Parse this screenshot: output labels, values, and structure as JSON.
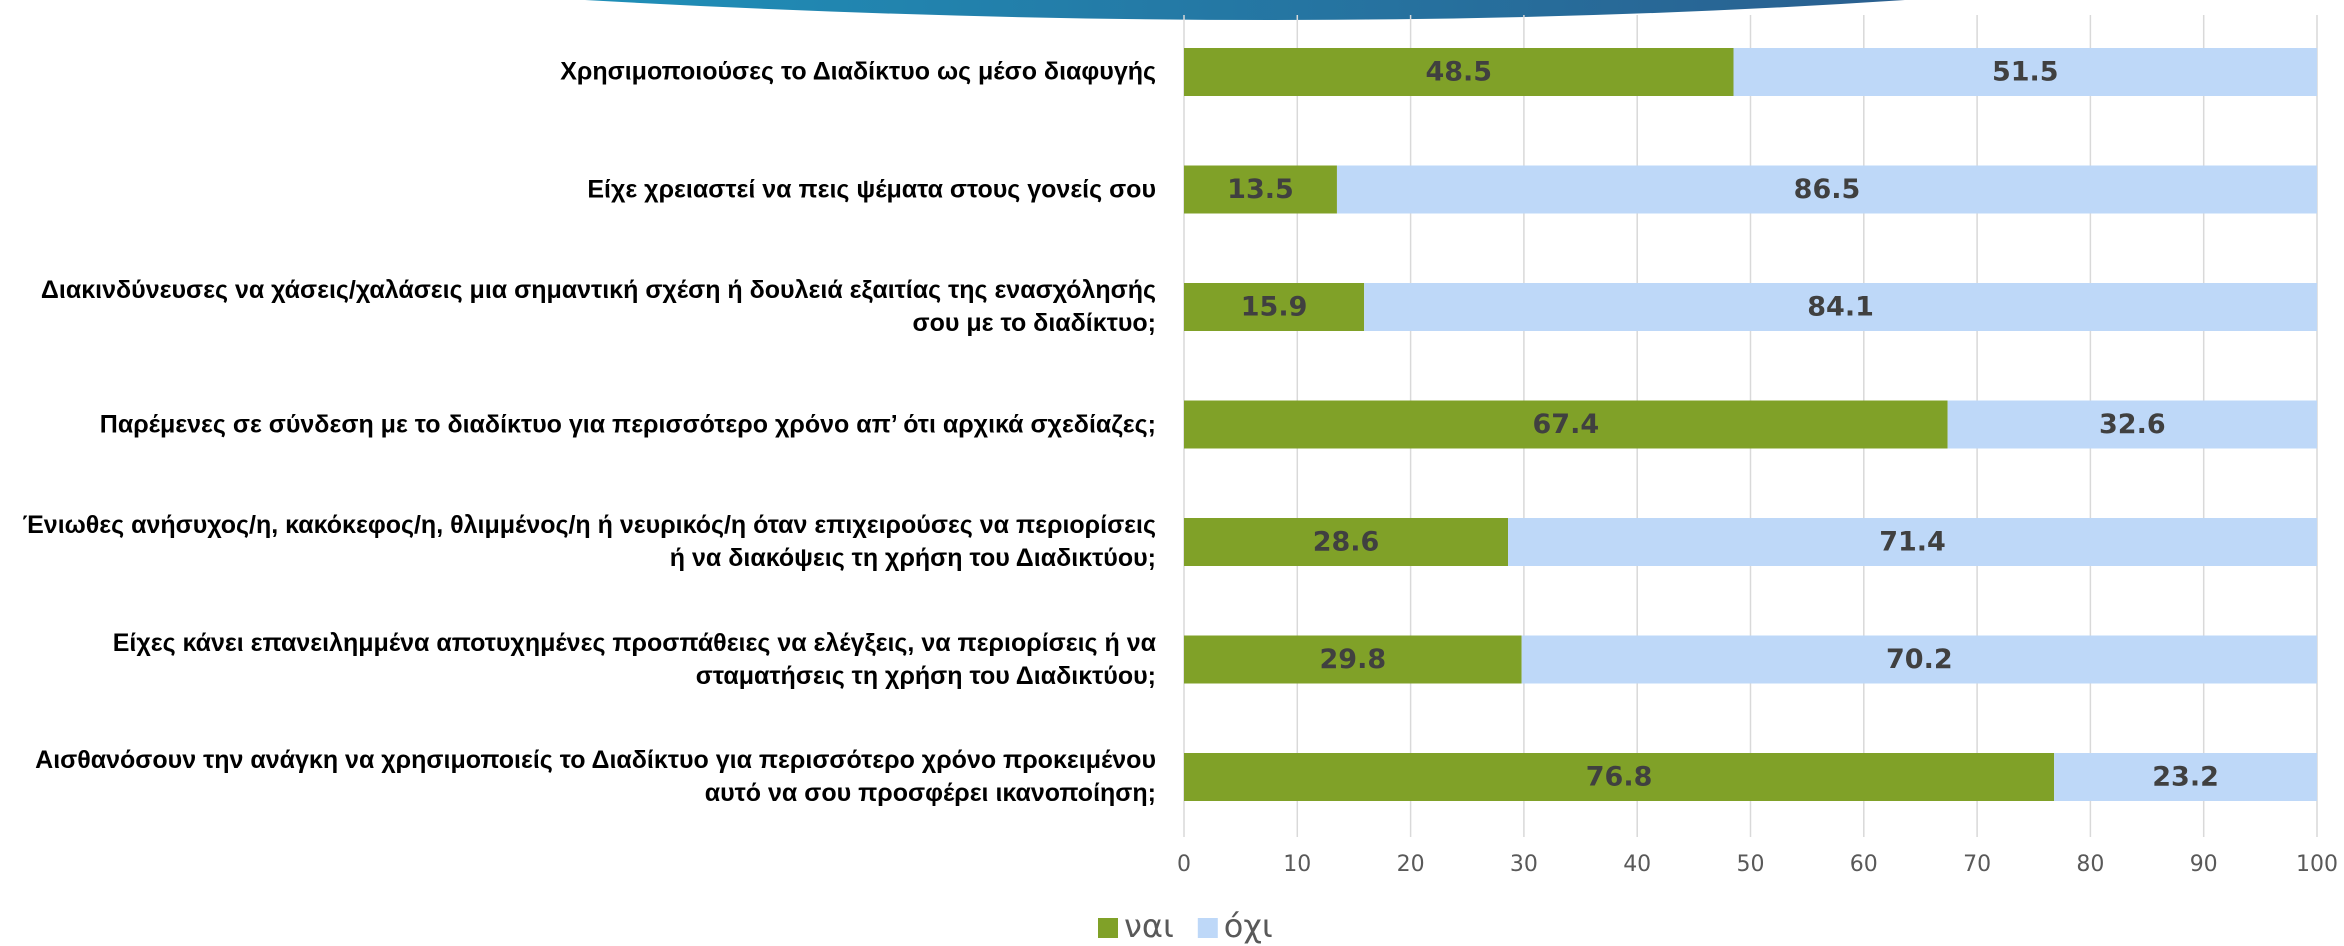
{
  "chart_data": {
    "type": "stacked-barh",
    "categories": [
      "Χρησιμοποιούσες το Διαδίκτυο ως μέσο διαφυγής",
      "Είχε χρειαστεί να πεις ψέματα στους γονείς σου",
      "Διακινδύνευσες να χάσεις/χαλάσεις μια σημαντική σχέση ή δουλειά εξαιτίας της ενασχόλησής σου με το διαδίκτυο;",
      "Παρέμενες σε σύνδεση με το διαδίκτυο για περισσότερο χρόνο απ’ ότι αρχικά σχεδίαζες;",
      "Ένιωθες ανήσυχος/η, κακόκεφος/η, θλιμμένος/η ή νευρικός/η όταν επιχειρούσες να περιορίσεις ή να διακόψεις τη χρήση του Διαδικτύου;",
      "Είχες κάνει επανειλημμένα αποτυχημένες προσπάθειες να ελέγξεις, να περιορίσεις ή να σταματήσεις τη χρήση του Διαδικτύου;",
      "Αισθανόσουν την ανάγκη να χρησιμοποιείς το Διαδίκτυο για περισσότερο χρόνο προκειμένου αυτό να σου προσφέρει ικανοποίηση;"
    ],
    "series": [
      {
        "name": "ναι",
        "color": "#80a128",
        "values": [
          48.5,
          13.5,
          15.9,
          67.4,
          28.6,
          29.8,
          76.8
        ]
      },
      {
        "name": "όχι",
        "color": "#bed8f8",
        "values": [
          51.5,
          86.5,
          84.1,
          32.6,
          71.4,
          70.2,
          23.2
        ]
      }
    ],
    "xlim": [
      0,
      100
    ],
    "xticks": [
      0,
      10,
      20,
      30,
      40,
      50,
      60,
      70,
      80,
      90,
      100
    ],
    "grid": true,
    "legend": "bottom"
  }
}
